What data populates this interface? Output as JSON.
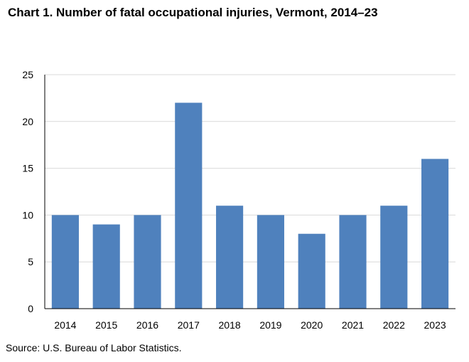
{
  "chart_data": {
    "type": "bar",
    "title": "Chart 1. Number of fatal occupational injuries, Vermont, 2014–23",
    "categories": [
      "2014",
      "2015",
      "2016",
      "2017",
      "2018",
      "2019",
      "2020",
      "2021",
      "2022",
      "2023"
    ],
    "series": [
      {
        "name": "Fatal occupational injuries",
        "values": [
          10,
          9,
          10,
          22,
          11,
          10,
          8,
          10,
          11,
          16
        ],
        "color": "#4F81BD"
      }
    ],
    "xlabel": "",
    "ylabel": "",
    "ylim": [
      0,
      25
    ],
    "yticks": [
      0,
      5,
      10,
      15,
      20,
      25
    ],
    "grid": true,
    "gridColor": "#D9D9D9",
    "legend": "none",
    "source": "Source: U.S. Bureau of Labor Statistics."
  }
}
